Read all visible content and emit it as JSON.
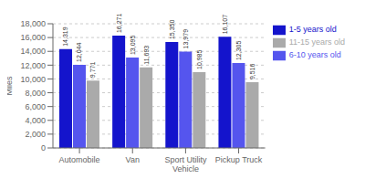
{
  "chart_data": {
    "type": "bar",
    "categories": [
      "Automobile",
      "Van",
      "Sport Utility\nVehicle",
      "Pickup Truck"
    ],
    "ylabel": "Miles",
    "ylim": [
      0,
      18000
    ],
    "yticks": [
      0,
      {
        "value": 2000,
        "label": "2,000"
      },
      {
        "value": 4000,
        "label": "4,000"
      },
      {
        "value": 6000,
        "label": "6,000"
      },
      {
        "value": 8000,
        "label": "8,000"
      },
      {
        "value": 10000,
        "label": "10,000"
      },
      {
        "value": 12000,
        "label": "12,000"
      },
      {
        "value": 14000,
        "label": "14,000"
      },
      {
        "value": 16000,
        "label": "16,000"
      },
      {
        "value": 18000,
        "label": "18,000"
      }
    ],
    "grid": true,
    "legend": "right",
    "data_labels": true,
    "series": [
      {
        "name": "1-5 years old",
        "color": "#1414cc",
        "values": [
          14319,
          16271,
          15350,
          16107
        ],
        "value_labels": [
          "14,319",
          "16,271",
          "15,350",
          "16,107"
        ]
      },
      {
        "name": "6-10 years old",
        "color": "#5555ee",
        "values": [
          12044,
          13095,
          13979,
          12305
        ],
        "value_labels": [
          "12,044",
          "13,095",
          "13,979",
          "12,305"
        ]
      },
      {
        "name": "11-15 years old",
        "color": "#aaaaaa",
        "values": [
          9771,
          11693,
          10985,
          9516
        ],
        "value_labels": [
          "9,771",
          "11,693",
          "10,985",
          "9,516"
        ]
      }
    ]
  }
}
